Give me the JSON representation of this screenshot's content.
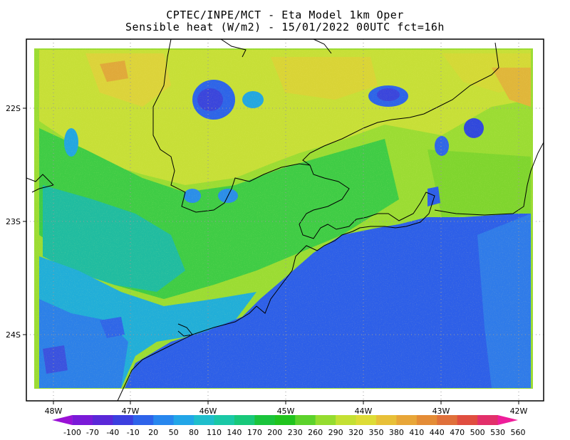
{
  "title": {
    "line1": "CPTEC/INPE/MCT -  Eta Model 1km Oper",
    "line2": "Sensible heat (W/m2) - 15/01/2022 00UTC fct=16h"
  },
  "axes": {
    "lat_labels": [
      "22S",
      "23S",
      "24S"
    ],
    "lon_labels": [
      "48W",
      "47W",
      "46W",
      "45W",
      "44W",
      "43W",
      "42W"
    ]
  },
  "colorbar": {
    "labels": [
      "-100",
      "-70",
      "-40",
      "-10",
      "20",
      "50",
      "80",
      "110",
      "140",
      "170",
      "200",
      "230",
      "260",
      "290",
      "320",
      "350",
      "380",
      "410",
      "440",
      "470",
      "500",
      "530",
      "560"
    ],
    "colors": [
      "#9a11d6",
      "#7a1ad8",
      "#5a28d8",
      "#3c3fdf",
      "#2e63ea",
      "#2887ee",
      "#22a6e8",
      "#1fbecc",
      "#1ac8a6",
      "#18c87a",
      "#1ac43c",
      "#20c41d",
      "#5cd22b",
      "#95dc2f",
      "#c4e033",
      "#dedc36",
      "#e8c038",
      "#e8a638",
      "#e48c36",
      "#e0703a",
      "#e04e40",
      "#e2306a",
      "#ee1e9a"
    ]
  }
}
